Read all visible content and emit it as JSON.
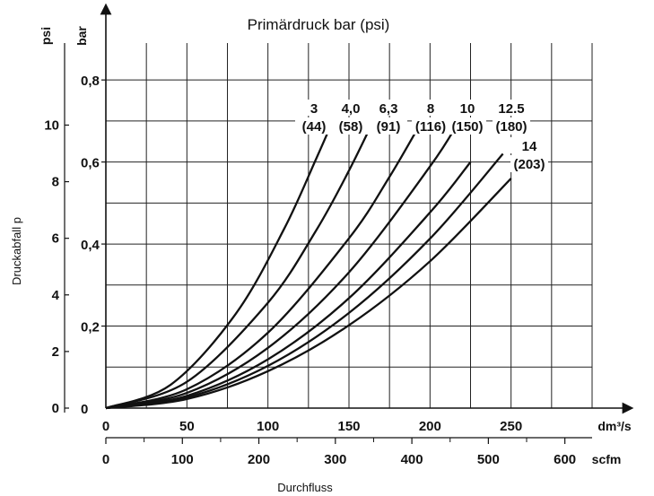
{
  "chart_data": {
    "type": "line",
    "title": "Primärdruck bar (psi)",
    "xlabel": "Durchfluss",
    "ylabel": "Druckabfall   p",
    "x_unit_primary": "dm³/s",
    "x_unit_secondary": "scfm",
    "y_unit_left": "psi",
    "y_unit_right": "bar",
    "xlim": [
      0,
      300
    ],
    "ylim": [
      0,
      0.89
    ],
    "x_ticks_primary": [
      {
        "value": 0,
        "label": "0"
      },
      {
        "value": 50,
        "label": "50"
      },
      {
        "value": 100,
        "label": "100"
      },
      {
        "value": 150,
        "label": "150"
      },
      {
        "value": 200,
        "label": "200"
      },
      {
        "value": 250,
        "label": "250"
      }
    ],
    "x_ticks_secondary": [
      {
        "value": 0,
        "label": "0"
      },
      {
        "value": 47.2,
        "label": "100"
      },
      {
        "value": 94.4,
        "label": "200"
      },
      {
        "value": 141.6,
        "label": "300"
      },
      {
        "value": 188.8,
        "label": "400"
      },
      {
        "value": 236.0,
        "label": "500"
      },
      {
        "value": 283.2,
        "label": "600"
      }
    ],
    "y_ticks_bar": [
      {
        "value": 0,
        "label": "0"
      },
      {
        "value": 0.2,
        "label": "0,2"
      },
      {
        "value": 0.4,
        "label": "0,4"
      },
      {
        "value": 0.6,
        "label": "0,6"
      },
      {
        "value": 0.8,
        "label": "0,8"
      }
    ],
    "y_ticks_psi": [
      {
        "value": 0,
        "label": "0"
      },
      {
        "value": 0.138,
        "label": "2"
      },
      {
        "value": 0.276,
        "label": "4"
      },
      {
        "value": 0.414,
        "label": "6"
      },
      {
        "value": 0.552,
        "label": "8"
      },
      {
        "value": 0.69,
        "label": "10"
      }
    ],
    "grid": true,
    "series": [
      {
        "name": "3 (44)",
        "label_line1": "3",
        "label_line2": "(44)",
        "x": [
          0,
          40,
          80,
          110,
          130,
          140
        ],
        "y": [
          0,
          0.057,
          0.229,
          0.437,
          0.61,
          0.7
        ]
      },
      {
        "name": "4,0 (58)",
        "label_line1": "4,0",
        "label_line2": "(58)",
        "x": [
          0,
          50,
          100,
          130,
          150,
          165
        ],
        "y": [
          0,
          0.064,
          0.257,
          0.435,
          0.579,
          0.7
        ]
      },
      {
        "name": "6,3 (91)",
        "label_line1": "6,3",
        "label_line2": "(91)",
        "x": [
          0,
          50,
          100,
          150,
          175,
          195
        ],
        "y": [
          0,
          0.046,
          0.184,
          0.414,
          0.564,
          0.7
        ]
      },
      {
        "name": "8 (116)",
        "label_line1": "8",
        "label_line2": "(116)",
        "x": [
          0,
          50,
          100,
          150,
          200,
          218
        ],
        "y": [
          0,
          0.037,
          0.147,
          0.331,
          0.589,
          0.7
        ]
      },
      {
        "name": "10 (150)",
        "label_line1": "10",
        "label_line2": "(150)",
        "x": [
          0,
          50,
          100,
          150,
          200,
          225
        ],
        "y": [
          0,
          0.03,
          0.119,
          0.268,
          0.477,
          0.6
        ]
      },
      {
        "name": "12.5 (180)",
        "label_line1": "12.5",
        "label_line2": "(180)",
        "x": [
          0,
          50,
          100,
          150,
          200,
          245
        ],
        "y": [
          0,
          0.026,
          0.103,
          0.232,
          0.413,
          0.62
        ]
      },
      {
        "name": "14 (203)",
        "label_line1": "14",
        "label_line2": "(203)",
        "x": [
          0,
          50,
          100,
          150,
          200,
          250
        ],
        "y": [
          0,
          0.022,
          0.09,
          0.202,
          0.358,
          0.56
        ]
      }
    ]
  }
}
